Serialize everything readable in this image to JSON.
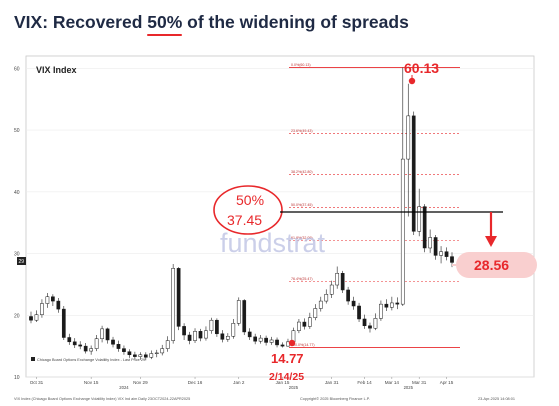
{
  "slide": {
    "title_before": "VIX: Recovered ",
    "title_highlight": "50%",
    "title_after": " of the widening of spreads"
  },
  "chart_data": {
    "type": "candlestick",
    "panel_title": "VIX Index",
    "watermark": "fundstrat",
    "ylim": [
      10,
      62
    ],
    "y_ticks": [
      10,
      20,
      30,
      40,
      50,
      60
    ],
    "x_tick_labels": [
      "Oct 31",
      "Nov 15",
      "Nov 29",
      "Dec 16",
      "Jan 2",
      "Jan 15",
      "Jan 31",
      "Feb 14",
      "Mar 14",
      "Mar 31",
      "Apr 15"
    ],
    "x_year_labels": [
      "2024",
      "2025",
      "2025"
    ],
    "legend": "Chicago Board Options Exchange Volatility Index - Last Price 29",
    "footer_left": "VIX Index (Chicago Board Options Exchange Volatility Index) VIX Ind aim Daily 23OCT2024-22APR2025",
    "footer_mid": "Copyright© 2025 Bloomberg Finance L.P.",
    "footer_right": "23-Apr-2025 14:08:01",
    "retracement_levels": [
      {
        "label": "0.0%(60.13)",
        "value": 60.13
      },
      {
        "label": "23.6%(49.43)",
        "value": 49.43
      },
      {
        "label": "38.2%(42.80)",
        "value": 42.8
      },
      {
        "label": "50.0%(37.45)",
        "value": 37.45
      },
      {
        "label": "61.8%(32.09)",
        "value": 32.09
      },
      {
        "label": "76.4%(25.47)",
        "value": 25.47
      },
      {
        "label": "100.0%(14.77)",
        "value": 14.77
      }
    ],
    "annotations": {
      "high_value": "60.13",
      "low_value": "14.77",
      "low_date": "2/14/25",
      "fifty_pct_label": "50%",
      "fifty_pct_value": "37.45",
      "current_value": "28.56",
      "last_price_tag": "29"
    },
    "candles": [
      {
        "o": 19.8,
        "c": 19.2,
        "h": 20.6,
        "l": 18.7
      },
      {
        "o": 19.2,
        "c": 20.1,
        "h": 20.8,
        "l": 18.9
      },
      {
        "o": 20.1,
        "c": 21.9,
        "h": 22.6,
        "l": 19.6
      },
      {
        "o": 21.9,
        "c": 23.0,
        "h": 23.6,
        "l": 21.2
      },
      {
        "o": 23.0,
        "c": 22.3,
        "h": 23.4,
        "l": 21.5
      },
      {
        "o": 22.3,
        "c": 21.0,
        "h": 22.8,
        "l": 20.4
      },
      {
        "o": 21.0,
        "c": 16.4,
        "h": 21.5,
        "l": 16.0
      },
      {
        "o": 16.4,
        "c": 15.7,
        "h": 17.0,
        "l": 15.2
      },
      {
        "o": 15.7,
        "c": 15.2,
        "h": 16.3,
        "l": 14.7
      },
      {
        "o": 15.2,
        "c": 15.0,
        "h": 15.8,
        "l": 14.5
      },
      {
        "o": 15.0,
        "c": 14.2,
        "h": 15.5,
        "l": 13.8
      },
      {
        "o": 14.2,
        "c": 14.6,
        "h": 15.1,
        "l": 13.6
      },
      {
        "o": 14.6,
        "c": 16.2,
        "h": 16.8,
        "l": 14.2
      },
      {
        "o": 16.2,
        "c": 17.8,
        "h": 18.3,
        "l": 15.6
      },
      {
        "o": 17.8,
        "c": 16.0,
        "h": 18.0,
        "l": 15.4
      },
      {
        "o": 16.0,
        "c": 15.3,
        "h": 16.5,
        "l": 14.8
      },
      {
        "o": 15.3,
        "c": 14.6,
        "h": 15.9,
        "l": 14.1
      },
      {
        "o": 14.6,
        "c": 14.1,
        "h": 15.1,
        "l": 13.6
      },
      {
        "o": 14.1,
        "c": 13.6,
        "h": 14.5,
        "l": 13.1
      },
      {
        "o": 13.6,
        "c": 13.3,
        "h": 14.1,
        "l": 12.9
      },
      {
        "o": 13.3,
        "c": 13.6,
        "h": 14.0,
        "l": 12.8
      },
      {
        "o": 13.6,
        "c": 13.2,
        "h": 14.0,
        "l": 12.7
      },
      {
        "o": 13.2,
        "c": 13.8,
        "h": 14.3,
        "l": 12.9
      },
      {
        "o": 13.8,
        "c": 13.9,
        "h": 14.4,
        "l": 13.2
      },
      {
        "o": 13.9,
        "c": 14.6,
        "h": 15.2,
        "l": 13.5
      },
      {
        "o": 14.6,
        "c": 15.9,
        "h": 16.6,
        "l": 14.1
      },
      {
        "o": 15.9,
        "c": 27.6,
        "h": 28.3,
        "l": 15.4
      },
      {
        "o": 27.6,
        "c": 18.2,
        "h": 27.8,
        "l": 17.6
      },
      {
        "o": 18.2,
        "c": 16.8,
        "h": 18.7,
        "l": 16.0
      },
      {
        "o": 16.8,
        "c": 15.9,
        "h": 17.3,
        "l": 15.3
      },
      {
        "o": 15.9,
        "c": 17.4,
        "h": 17.9,
        "l": 15.5
      },
      {
        "o": 17.4,
        "c": 16.3,
        "h": 17.8,
        "l": 15.8
      },
      {
        "o": 16.3,
        "c": 17.5,
        "h": 18.2,
        "l": 15.9
      },
      {
        "o": 17.5,
        "c": 19.2,
        "h": 19.6,
        "l": 17.0
      },
      {
        "o": 19.2,
        "c": 17.0,
        "h": 19.5,
        "l": 16.5
      },
      {
        "o": 17.0,
        "c": 16.1,
        "h": 17.6,
        "l": 15.6
      },
      {
        "o": 16.1,
        "c": 16.6,
        "h": 17.1,
        "l": 15.7
      },
      {
        "o": 16.6,
        "c": 18.7,
        "h": 19.4,
        "l": 16.2
      },
      {
        "o": 18.7,
        "c": 22.4,
        "h": 22.9,
        "l": 18.3
      },
      {
        "o": 22.4,
        "c": 17.3,
        "h": 22.6,
        "l": 16.8
      },
      {
        "o": 17.3,
        "c": 16.5,
        "h": 17.9,
        "l": 16.0
      },
      {
        "o": 16.5,
        "c": 15.8,
        "h": 17.0,
        "l": 15.3
      },
      {
        "o": 15.8,
        "c": 16.3,
        "h": 16.8,
        "l": 15.4
      },
      {
        "o": 16.3,
        "c": 15.6,
        "h": 16.7,
        "l": 15.1
      },
      {
        "o": 15.6,
        "c": 16.0,
        "h": 16.5,
        "l": 15.2
      },
      {
        "o": 16.0,
        "c": 15.2,
        "h": 16.4,
        "l": 14.8
      },
      {
        "o": 15.2,
        "c": 15.0,
        "h": 15.6,
        "l": 14.77
      },
      {
        "o": 15.0,
        "c": 15.7,
        "h": 16.2,
        "l": 14.9
      },
      {
        "o": 15.7,
        "c": 17.5,
        "h": 18.0,
        "l": 15.4
      },
      {
        "o": 17.5,
        "c": 18.9,
        "h": 19.4,
        "l": 17.1
      },
      {
        "o": 18.9,
        "c": 18.2,
        "h": 19.5,
        "l": 17.7
      },
      {
        "o": 18.2,
        "c": 19.6,
        "h": 20.4,
        "l": 17.8
      },
      {
        "o": 19.6,
        "c": 21.1,
        "h": 21.8,
        "l": 19.2
      },
      {
        "o": 21.1,
        "c": 22.3,
        "h": 23.0,
        "l": 20.6
      },
      {
        "o": 22.3,
        "c": 23.4,
        "h": 24.2,
        "l": 21.9
      },
      {
        "o": 23.4,
        "c": 24.9,
        "h": 25.6,
        "l": 22.8
      },
      {
        "o": 24.9,
        "c": 26.8,
        "h": 27.9,
        "l": 24.3
      },
      {
        "o": 26.8,
        "c": 24.1,
        "h": 27.2,
        "l": 23.6
      },
      {
        "o": 24.1,
        "c": 22.3,
        "h": 24.6,
        "l": 21.7
      },
      {
        "o": 22.3,
        "c": 21.5,
        "h": 23.0,
        "l": 20.9
      },
      {
        "o": 21.5,
        "c": 19.4,
        "h": 22.0,
        "l": 18.9
      },
      {
        "o": 19.4,
        "c": 18.3,
        "h": 20.1,
        "l": 17.8
      },
      {
        "o": 18.3,
        "c": 17.9,
        "h": 18.8,
        "l": 17.2
      },
      {
        "o": 17.9,
        "c": 19.5,
        "h": 20.3,
        "l": 17.6
      },
      {
        "o": 19.5,
        "c": 21.8,
        "h": 22.4,
        "l": 19.1
      },
      {
        "o": 21.8,
        "c": 21.3,
        "h": 22.6,
        "l": 20.7
      },
      {
        "o": 21.3,
        "c": 22.0,
        "h": 23.0,
        "l": 20.8
      },
      {
        "o": 22.0,
        "c": 21.8,
        "h": 22.9,
        "l": 21.0
      },
      {
        "o": 21.8,
        "c": 45.3,
        "h": 60.13,
        "l": 21.5
      },
      {
        "o": 45.3,
        "c": 52.3,
        "h": 57.5,
        "l": 36.0
      },
      {
        "o": 52.3,
        "c": 33.6,
        "h": 53.0,
        "l": 33.0
      },
      {
        "o": 33.6,
        "c": 37.6,
        "h": 40.5,
        "l": 32.8
      },
      {
        "o": 37.6,
        "c": 30.9,
        "h": 38.0,
        "l": 30.2
      },
      {
        "o": 30.9,
        "c": 32.6,
        "h": 33.9,
        "l": 30.1
      },
      {
        "o": 32.6,
        "c": 29.7,
        "h": 33.0,
        "l": 29.0
      },
      {
        "o": 29.7,
        "c": 30.3,
        "h": 31.2,
        "l": 28.4
      },
      {
        "o": 30.3,
        "c": 29.5,
        "h": 31.0,
        "l": 28.9
      },
      {
        "o": 29.5,
        "c": 28.56,
        "h": 30.2,
        "l": 27.8
      }
    ]
  }
}
